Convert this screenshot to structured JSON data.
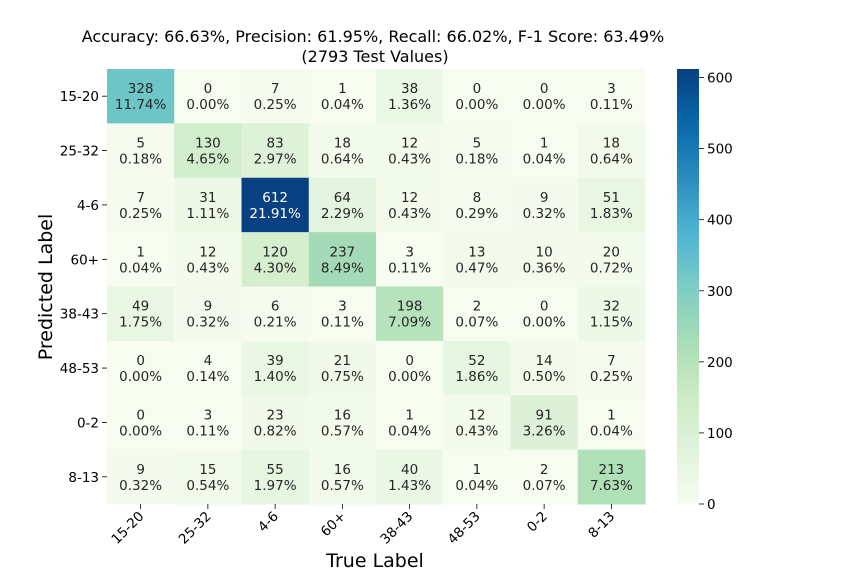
{
  "chart_data": {
    "type": "heatmap",
    "title": "Accuracy: 66.63%, Precision: 61.95%, Recall: 66.02%, F-1 Score: 63.49%",
    "subtitle": "(2793 Test Values)",
    "xlabel": "True Label",
    "ylabel": "Predicted Label",
    "x_categories": [
      "15-20",
      "25-32",
      "4-6",
      "60+",
      "38-43",
      "48-53",
      "0-2",
      "8-13"
    ],
    "y_categories": [
      "15-20",
      "25-32",
      "4-6",
      "60+",
      "38-43",
      "48-53",
      "0-2",
      "8-13"
    ],
    "values": [
      [
        328,
        0,
        7,
        1,
        38,
        0,
        0,
        3
      ],
      [
        5,
        130,
        83,
        18,
        12,
        5,
        1,
        18
      ],
      [
        7,
        31,
        612,
        64,
        12,
        8,
        9,
        51
      ],
      [
        1,
        12,
        120,
        237,
        3,
        13,
        10,
        20
      ],
      [
        49,
        9,
        6,
        3,
        198,
        2,
        0,
        32
      ],
      [
        0,
        4,
        39,
        21,
        0,
        52,
        14,
        7
      ],
      [
        0,
        3,
        23,
        16,
        1,
        12,
        91,
        1
      ],
      [
        9,
        15,
        55,
        16,
        40,
        1,
        2,
        213
      ]
    ],
    "percentages": [
      [
        "11.74%",
        "0.00%",
        "0.25%",
        "0.04%",
        "1.36%",
        "0.00%",
        "0.00%",
        "0.11%"
      ],
      [
        "0.18%",
        "4.65%",
        "2.97%",
        "0.64%",
        "0.43%",
        "0.18%",
        "0.04%",
        "0.64%"
      ],
      [
        "0.25%",
        "1.11%",
        "21.91%",
        "2.29%",
        "0.43%",
        "0.29%",
        "0.32%",
        "1.83%"
      ],
      [
        "0.04%",
        "0.43%",
        "4.30%",
        "8.49%",
        "0.11%",
        "0.47%",
        "0.36%",
        "0.72%"
      ],
      [
        "1.75%",
        "0.32%",
        "0.21%",
        "0.11%",
        "7.09%",
        "0.07%",
        "0.00%",
        "1.15%"
      ],
      [
        "0.00%",
        "0.14%",
        "1.40%",
        "0.75%",
        "0.00%",
        "1.86%",
        "0.50%",
        "0.25%"
      ],
      [
        "0.00%",
        "0.11%",
        "0.82%",
        "0.57%",
        "0.04%",
        "0.43%",
        "3.26%",
        "0.04%"
      ],
      [
        "0.32%",
        "0.54%",
        "1.97%",
        "0.57%",
        "1.43%",
        "0.04%",
        "0.07%",
        "7.63%"
      ]
    ],
    "colorbar": {
      "colormap": "GnBu",
      "min": 0,
      "max": 612,
      "ticks": [
        0,
        100,
        200,
        300,
        400,
        500,
        600
      ]
    }
  }
}
